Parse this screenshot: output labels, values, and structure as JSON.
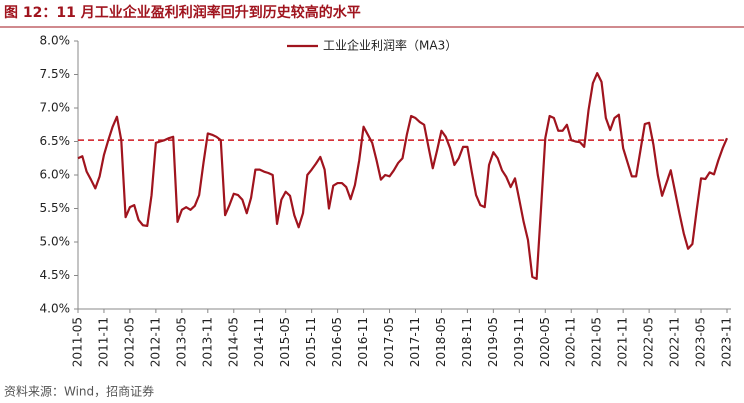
{
  "chart_data": {
    "type": "line",
    "title": "图 12：11 月工业企业盈利利润率回升到历史较高的水平",
    "source": "资料来源：Wind，招商证券",
    "categories": [
      "2011-05",
      null,
      null,
      null,
      null,
      null,
      "2011-11",
      null,
      null,
      null,
      null,
      null,
      "2012-05",
      null,
      null,
      null,
      null,
      null,
      "2012-11",
      null,
      null,
      null,
      null,
      null,
      "2013-05",
      null,
      null,
      null,
      null,
      null,
      "2013-11",
      null,
      null,
      null,
      null,
      null,
      "2014-05",
      null,
      null,
      null,
      null,
      null,
      "2014-11",
      null,
      null,
      null,
      null,
      null,
      "2015-05",
      null,
      null,
      null,
      null,
      null,
      "2015-11",
      null,
      null,
      null,
      null,
      null,
      "2016-05",
      null,
      null,
      null,
      null,
      null,
      "2016-11",
      null,
      null,
      null,
      null,
      null,
      "2017-05",
      null,
      null,
      null,
      null,
      null,
      "2017-11",
      null,
      null,
      null,
      null,
      null,
      "2018-05",
      null,
      null,
      null,
      null,
      null,
      "2018-11",
      null,
      null,
      null,
      null,
      null,
      "2019-05",
      null,
      null,
      null,
      null,
      null,
      "2019-11",
      null,
      null,
      null,
      null,
      null,
      "2020-05",
      null,
      null,
      null,
      null,
      null,
      "2020-11",
      null,
      null,
      null,
      null,
      null,
      "2021-05",
      null,
      null,
      null,
      null,
      null,
      "2021-11",
      null,
      null,
      null,
      null,
      null,
      "2022-05",
      null,
      null,
      null,
      null,
      null,
      "2022-11",
      null,
      null,
      null,
      null,
      null,
      "2023-05",
      null,
      null,
      null,
      null,
      null,
      "2023-11"
    ],
    "series": [
      {
        "name": "工业企业利润率（MA3）",
        "color": "#a0141e",
        "values": [
          6.25,
          6.28,
          6.05,
          5.93,
          5.8,
          5.98,
          6.3,
          6.52,
          6.72,
          6.87,
          6.52,
          5.37,
          5.52,
          5.55,
          5.33,
          5.25,
          5.24,
          5.7,
          6.48,
          6.5,
          6.52,
          6.55,
          6.57,
          5.3,
          5.48,
          5.52,
          5.48,
          5.54,
          5.7,
          6.18,
          6.62,
          6.6,
          6.57,
          6.52,
          5.4,
          5.55,
          5.72,
          5.7,
          5.63,
          5.43,
          5.66,
          6.08,
          6.08,
          6.05,
          6.03,
          6.0,
          5.27,
          5.63,
          5.75,
          5.69,
          5.4,
          5.22,
          5.43,
          6.0,
          6.08,
          6.17,
          6.27,
          6.08,
          5.5,
          5.84,
          5.88,
          5.88,
          5.82,
          5.64,
          5.85,
          6.22,
          6.72,
          6.6,
          6.48,
          6.22,
          5.93,
          6.0,
          5.98,
          6.07,
          6.18,
          6.25,
          6.6,
          6.88,
          6.85,
          6.79,
          6.75,
          6.42,
          6.1,
          6.37,
          6.66,
          6.57,
          6.4,
          6.15,
          6.25,
          6.42,
          6.42,
          6.05,
          5.7,
          5.55,
          5.52,
          6.15,
          6.34,
          6.25,
          6.07,
          5.97,
          5.82,
          5.95,
          5.63,
          5.3,
          5.03,
          4.48,
          4.45,
          5.48,
          6.55,
          6.88,
          6.85,
          6.66,
          6.66,
          6.75,
          6.52,
          6.5,
          6.49,
          6.42,
          6.97,
          7.37,
          7.52,
          7.39,
          6.85,
          6.67,
          6.85,
          6.9,
          6.4,
          6.19,
          5.98,
          5.98,
          6.37,
          6.76,
          6.78,
          6.45,
          6.0,
          5.69,
          5.88,
          6.07,
          5.75,
          5.43,
          5.13,
          4.9,
          4.97,
          5.48,
          5.95,
          5.94,
          6.04,
          6.01,
          6.22,
          6.4,
          6.55
        ]
      }
    ],
    "ylim": [
      4,
      8
    ],
    "yticks": [
      {
        "value": 4,
        "label": "4.0%"
      },
      {
        "value": 4.5,
        "label": "4.5%"
      },
      {
        "value": 5,
        "label": "5.0%"
      },
      {
        "value": 5.5,
        "label": "5.5%"
      },
      {
        "value": 6,
        "label": "6.0%"
      },
      {
        "value": 6.5,
        "label": "6.5%"
      },
      {
        "value": 7,
        "label": "7.0%"
      },
      {
        "value": 7.5,
        "label": "7.5%"
      },
      {
        "value": 8,
        "label": "8.0%"
      }
    ],
    "reference_line": {
      "value": 6.52,
      "color": "#d0161e",
      "style": "dashed"
    },
    "legend": "top"
  }
}
